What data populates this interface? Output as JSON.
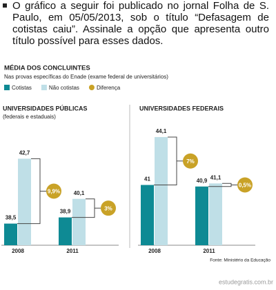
{
  "question": {
    "text": "O gráfico a seguir foi publicado no jornal Folha de S. Paulo, em 05/05/2013, sob o título “Defasagem de cotistas caiu”. Assinale a opção que apresenta outro título possível para esses dados."
  },
  "figure": {
    "title": "MÉDIA DOS CONCLUINTES",
    "subtitle": "Nas provas específicas do Enade (exame federal de universitários)",
    "source": "Fonte: Ministério da Educação"
  },
  "watermark": "estudegratis.com.br",
  "chart_data": [
    {
      "type": "bar",
      "title": "UNIVERSIDADES PÚBLICAS",
      "subtitle": "(federais e estaduais)",
      "categories": [
        "2008",
        "2011"
      ],
      "ylim": [
        37.1,
        44.5
      ],
      "series": [
        {
          "name": "Cotistas",
          "color": "#0e8a94",
          "values": [
            38.5,
            38.9
          ],
          "value_labels": [
            "38,5",
            "38,9"
          ]
        },
        {
          "name": "Não cotistas",
          "color": "#bfdfe7",
          "values": [
            42.7,
            40.1
          ],
          "value_labels": [
            "42,7",
            "40,1"
          ]
        }
      ],
      "differences": {
        "name": "Diferença",
        "color": "#c9a227",
        "values": [
          9.9,
          3
        ],
        "value_labels": [
          "9,9%",
          "3%"
        ]
      }
    },
    {
      "type": "bar",
      "title": "UNIVERSIDADES FEDERAIS",
      "categories": [
        "2008",
        "2011"
      ],
      "ylim": [
        37.1,
        44.5
      ],
      "series": [
        {
          "color": "#0e8a94",
          "values": [
            41,
            40.9
          ],
          "value_labels": [
            "41",
            "40,9"
          ]
        },
        {
          "color": "#bfdfe7",
          "values": [
            44.1,
            41.1
          ],
          "value_labels": [
            "44,1",
            "41,1"
          ]
        }
      ],
      "differences": {
        "color": "#c9a227",
        "values": [
          7,
          0.5
        ],
        "value_labels": [
          "7%",
          "0,5%"
        ]
      }
    }
  ]
}
